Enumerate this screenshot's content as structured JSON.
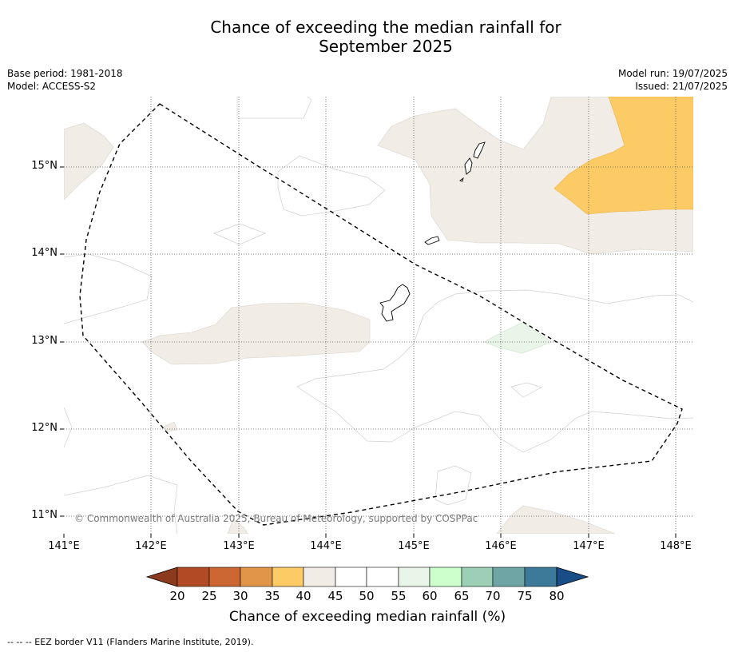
{
  "title_line1": "Chance of exceeding the median rainfall for",
  "title_line2": "September 2025",
  "meta_left": [
    "Base period: 1981-2018",
    "Model: ACCESS-S2"
  ],
  "meta_right": [
    "Model run: 19/07/2025",
    "Issued: 21/07/2025"
  ],
  "map": {
    "lon_range": [
      141.0,
      148.2
    ],
    "lat_range": [
      10.8,
      15.8
    ],
    "lat_ticks": [
      "15°N",
      "14°N",
      "13°N",
      "12°N",
      "11°N"
    ],
    "lon_ticks": [
      "141°E",
      "142°E",
      "143°E",
      "144°E",
      "145°E",
      "146°E",
      "147°E",
      "148°E"
    ],
    "gridlines": "dotted",
    "copyright": "© Commonwealth of Australia 2025, Bureau of Meteorology, supported by COSPPac",
    "regions": [
      {
        "category": "40-45",
        "area": "northeast of Northern Mariana Islands"
      },
      {
        "category": "35-40",
        "area": "far northeast corner"
      },
      {
        "category": "40-45",
        "area": "west of Guam"
      },
      {
        "category": "40-45",
        "area": "northwest edge"
      },
      {
        "category": "55-60",
        "area": "east of Guam"
      },
      {
        "category": "40-45",
        "area": "southeast edge"
      }
    ]
  },
  "colorbar": {
    "ticks": [
      "20",
      "25",
      "30",
      "35",
      "40",
      "45",
      "50",
      "55",
      "60",
      "65",
      "70",
      "75",
      "80"
    ],
    "colors": [
      "#8c3a1e",
      "#b24a25",
      "#cc6633",
      "#e09548",
      "#fdcb65",
      "#f1ede6",
      "#ffffff",
      "#ffffff",
      "#e8f5e8",
      "#ccffcc",
      "#9ccfb6",
      "#6fa6a5",
      "#3d7a99",
      "#194d88"
    ],
    "label": "Chance of exceeding median rainfall (%)"
  },
  "footnote": "--  --  -- EEZ border V11 (Flanders Marine Institute, 2019)."
}
